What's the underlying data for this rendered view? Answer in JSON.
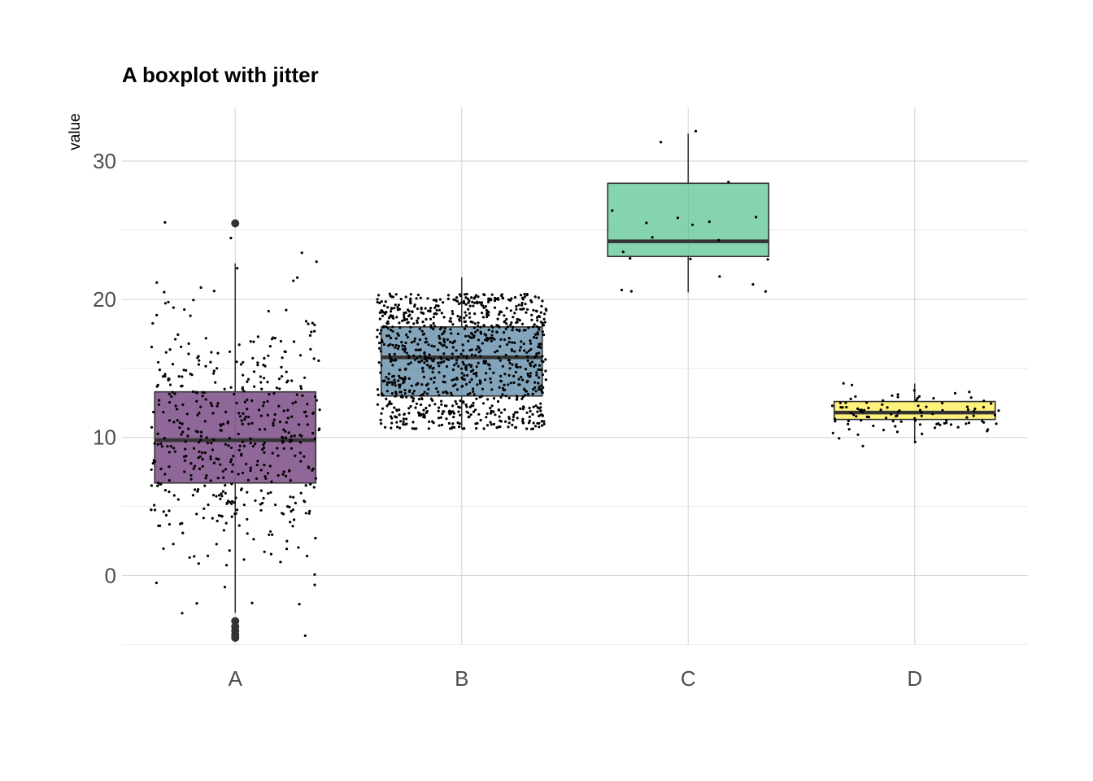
{
  "chart_data": {
    "type": "boxplot",
    "title": "A boxplot with jitter",
    "xlabel": "",
    "ylabel": "value",
    "ylim": [
      -5,
      34
    ],
    "y_ticks": [
      0,
      10,
      20,
      30
    ],
    "grid": true,
    "legend": "none",
    "categories": [
      "A",
      "B",
      "C",
      "D"
    ],
    "series": [
      {
        "category": "A",
        "color": "#440154",
        "n": 500,
        "min": -2.7,
        "q1": 6.7,
        "median": 9.8,
        "q3": 13.3,
        "max": 22.6,
        "outliers": [
          25.5,
          -3.3,
          -3.7,
          -4.0,
          -4.3,
          -4.5
        ]
      },
      {
        "category": "B",
        "color": "#31688E",
        "n": 1000,
        "min": 10.6,
        "q1": 13.0,
        "median": 15.8,
        "q3": 18.0,
        "max": 21.6,
        "outliers": []
      },
      {
        "category": "C",
        "color": "#35B779",
        "n": 20,
        "min": 20.5,
        "q1": 23.1,
        "median": 24.2,
        "q3": 28.4,
        "max": 32.0,
        "outliers": []
      },
      {
        "category": "D",
        "color": "#FDE725",
        "n": 100,
        "min": 9.6,
        "q1": 11.3,
        "median": 11.8,
        "q3": 12.6,
        "max": 13.9,
        "outliers": []
      }
    ]
  }
}
